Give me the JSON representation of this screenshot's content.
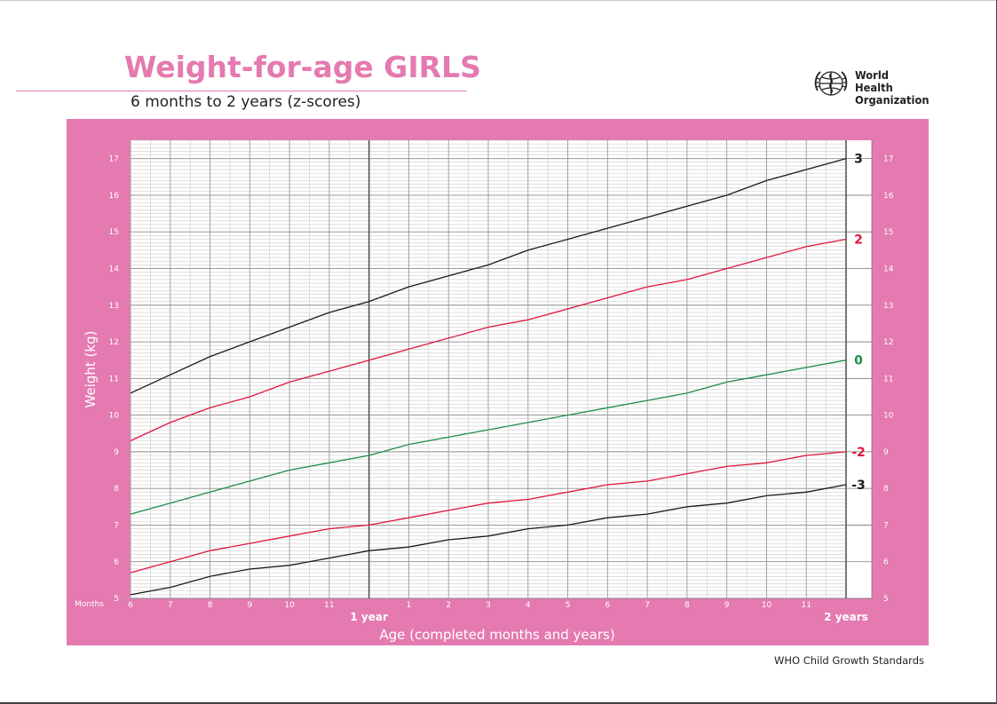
{
  "header": {
    "title": "Weight-for-age GIRLS",
    "subtitle": "6 months to 2 years (z-scores)",
    "organization": "World Health\nOrganization",
    "logo_icon": "who-emblem-icon",
    "accent_color": "#e47ab0"
  },
  "footer": {
    "text": "WHO Child Growth Standards"
  },
  "chart_data": {
    "type": "line",
    "title": "Weight-for-age GIRLS",
    "subtitle": "6 months to 2 years (z-scores)",
    "xlabel": "Age (completed months and years)",
    "ylabel": "Weight (kg)",
    "xlim": [
      6,
      24
    ],
    "ylim": [
      5,
      17.5
    ],
    "x_unit_label": "Months",
    "x_tick_labels": [
      {
        "x": 6,
        "label": "6"
      },
      {
        "x": 7,
        "label": "7"
      },
      {
        "x": 8,
        "label": "8"
      },
      {
        "x": 9,
        "label": "9"
      },
      {
        "x": 10,
        "label": "10"
      },
      {
        "x": 11,
        "label": "11"
      },
      {
        "x": 13,
        "label": "1"
      },
      {
        "x": 14,
        "label": "2"
      },
      {
        "x": 15,
        "label": "3"
      },
      {
        "x": 16,
        "label": "4"
      },
      {
        "x": 17,
        "label": "5"
      },
      {
        "x": 18,
        "label": "6"
      },
      {
        "x": 19,
        "label": "7"
      },
      {
        "x": 20,
        "label": "8"
      },
      {
        "x": 21,
        "label": "9"
      },
      {
        "x": 22,
        "label": "10"
      },
      {
        "x": 23,
        "label": "11"
      }
    ],
    "x_year_labels": [
      {
        "x": 12,
        "label": "1 year"
      },
      {
        "x": 24,
        "label": "2 years"
      }
    ],
    "y_ticks": [
      5,
      6,
      7,
      8,
      9,
      10,
      11,
      12,
      13,
      14,
      15,
      16,
      17
    ],
    "grid": true,
    "x": [
      6,
      7,
      8,
      9,
      10,
      11,
      12,
      13,
      14,
      15,
      16,
      17,
      18,
      19,
      20,
      21,
      22,
      23,
      24
    ],
    "series": [
      {
        "name": "3",
        "color": "#1a1a1a",
        "values": [
          10.6,
          11.1,
          11.6,
          12.0,
          12.4,
          12.8,
          13.1,
          13.5,
          13.8,
          14.1,
          14.5,
          14.8,
          15.1,
          15.4,
          15.7,
          16.0,
          16.4,
          16.7,
          17.0
        ]
      },
      {
        "name": "2",
        "color": "#e2153d",
        "values": [
          9.3,
          9.8,
          10.2,
          10.5,
          10.9,
          11.2,
          11.5,
          11.8,
          12.1,
          12.4,
          12.6,
          12.9,
          13.2,
          13.5,
          13.7,
          14.0,
          14.3,
          14.6,
          14.8
        ]
      },
      {
        "name": "0",
        "color": "#1e8c4a",
        "values": [
          7.3,
          7.6,
          7.9,
          8.2,
          8.5,
          8.7,
          8.9,
          9.2,
          9.4,
          9.6,
          9.8,
          10.0,
          10.2,
          10.4,
          10.6,
          10.9,
          11.1,
          11.3,
          11.5
        ]
      },
      {
        "name": "-2",
        "color": "#e2153d",
        "values": [
          5.7,
          6.0,
          6.3,
          6.5,
          6.7,
          6.9,
          7.0,
          7.2,
          7.4,
          7.6,
          7.7,
          7.9,
          8.1,
          8.2,
          8.4,
          8.6,
          8.7,
          8.9,
          9.0
        ]
      },
      {
        "name": "-3",
        "color": "#1a1a1a",
        "values": [
          5.1,
          5.3,
          5.6,
          5.8,
          5.9,
          6.1,
          6.3,
          6.4,
          6.6,
          6.7,
          6.9,
          7.0,
          7.2,
          7.3,
          7.5,
          7.6,
          7.8,
          7.9,
          8.1
        ]
      }
    ]
  }
}
